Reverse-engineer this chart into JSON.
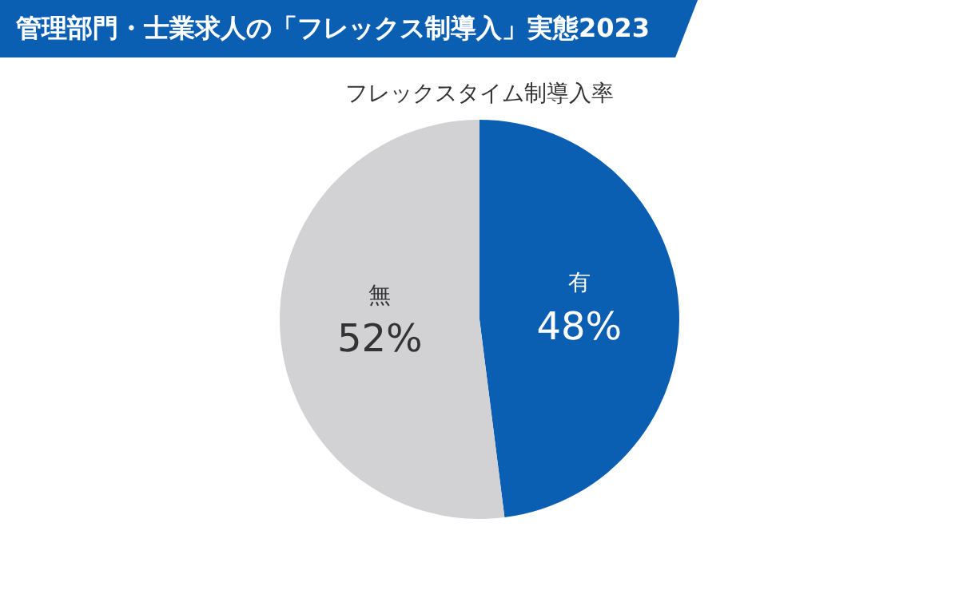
{
  "chart_data": {
    "type": "pie",
    "title": "管理部門・士業求人の「フレックス制導入」実態2023",
    "subtitle": "フレックスタイム制導入率",
    "categories": [
      "有",
      "無"
    ],
    "values": [
      48,
      52
    ],
    "colors": [
      "#0b5fb3",
      "#d2d2d4"
    ],
    "value_labels": [
      "48%",
      "52%"
    ],
    "legend": false
  }
}
